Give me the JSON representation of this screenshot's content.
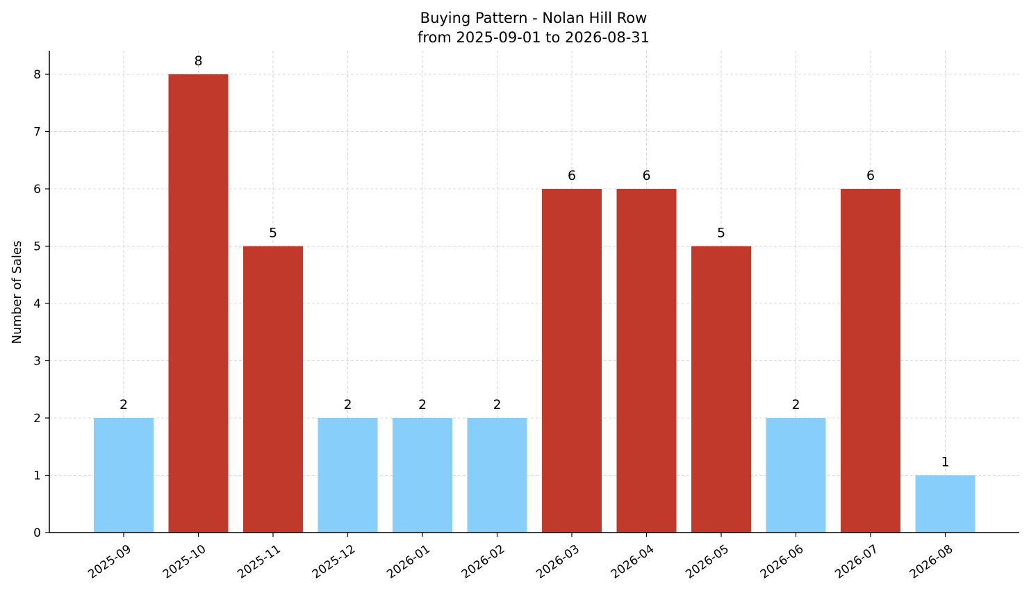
{
  "chart_data": {
    "type": "bar",
    "title": "Buying Pattern - Nolan Hill Row",
    "subtitle": "from 2025-09-01 to 2026-08-31",
    "xlabel": "",
    "ylabel": "Number of Sales",
    "categories": [
      "2025-09",
      "2025-10",
      "2025-11",
      "2025-12",
      "2026-01",
      "2026-02",
      "2026-03",
      "2026-04",
      "2026-05",
      "2026-06",
      "2026-07",
      "2026-08"
    ],
    "values": [
      2,
      8,
      5,
      2,
      2,
      2,
      6,
      6,
      5,
      2,
      6,
      1
    ],
    "bar_colors": [
      "#87CEFA",
      "#C0392B",
      "#C0392B",
      "#87CEFA",
      "#87CEFA",
      "#87CEFA",
      "#C0392B",
      "#C0392B",
      "#C0392B",
      "#87CEFA",
      "#C0392B",
      "#87CEFA"
    ],
    "ylim": [
      0,
      8.4
    ],
    "yticks": [
      0,
      1,
      2,
      3,
      4,
      5,
      6,
      7,
      8
    ],
    "grid": true,
    "data_labels": true
  },
  "colors": {
    "high": "#C0392B",
    "low": "#87CEFA",
    "grid": "#cccccc",
    "axis": "#000000"
  }
}
